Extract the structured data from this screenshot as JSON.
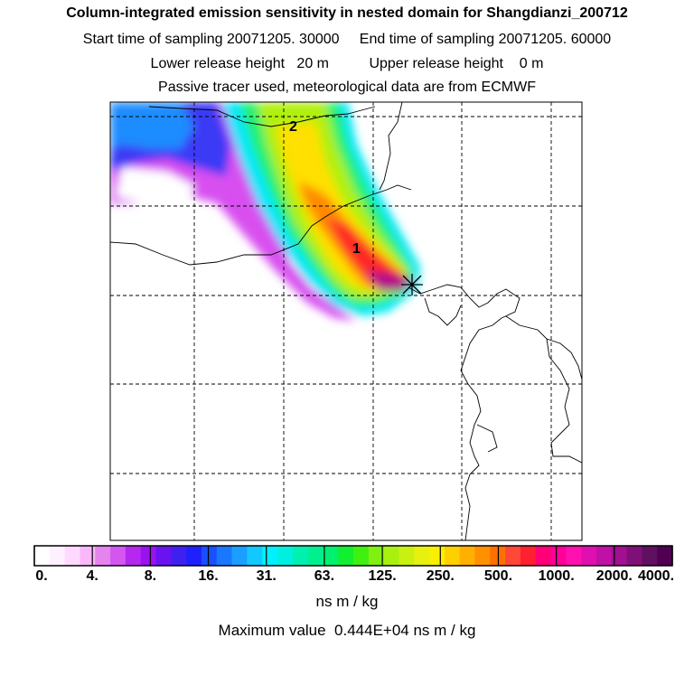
{
  "header": {
    "title": "Column-integrated emission sensitivity in nested domain for Shangdianzi_200712",
    "line2": "Start time of sampling 20071205. 30000     End time of sampling 20071205. 60000",
    "line3": "Lower release height   20 m          Upper release height    0 m",
    "line4": "Passive tracer used, meteorological data are from ECMWF"
  },
  "map": {
    "labels": [
      {
        "text": "1"
      },
      {
        "text": "2"
      }
    ],
    "station_marker": "asterisk-marker",
    "gridline_style": "dashed"
  },
  "colorbar": {
    "tick_labels": [
      "0.",
      "4.",
      "8.",
      "16.",
      "31.",
      "63.",
      "125.",
      "250.",
      "500.",
      "1000.",
      "2000.",
      "4000."
    ],
    "colors": [
      "#ffffff",
      "#fff0ff",
      "#ffd9ff",
      "#f9b7f9",
      "#e684ee",
      "#d356f0",
      "#b627f0",
      "#9a12f0",
      "#6b12f0",
      "#4020f0",
      "#2020ff",
      "#1850ff",
      "#1a78ff",
      "#1b9eff",
      "#11c8ff",
      "#00f0ff",
      "#00f0e0",
      "#00f0b0",
      "#00f090",
      "#00f070",
      "#10f030",
      "#40f010",
      "#80f010",
      "#a8f010",
      "#c8f010",
      "#e8f010",
      "#f8f000",
      "#ffd000",
      "#ffb000",
      "#ff9000",
      "#ff7000",
      "#ff4838",
      "#ff2030",
      "#ff0078",
      "#ff0098",
      "#ff10b0",
      "#e010b0",
      "#c010a8",
      "#a01090",
      "#801078",
      "#601060",
      "#500050"
    ],
    "unit": "ns m / kg"
  },
  "footer": {
    "max_value_text": "Maximum value  0.444E+04 ns m / kg"
  }
}
